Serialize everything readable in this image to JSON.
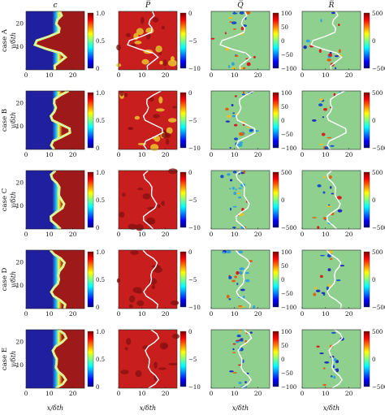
{
  "chart_data": {
    "type": "heatmap",
    "columns": [
      {
        "key": "c",
        "title": "c",
        "cbar_ticks_by_row": [
          [
            "1.0",
            "0.5",
            "0"
          ],
          [
            "1.0",
            "0.5",
            "0"
          ],
          [
            "1.0",
            "0.5",
            "0"
          ],
          [
            "1.0",
            "0.5",
            "0"
          ],
          [
            "1.0",
            "0.5",
            "0"
          ]
        ],
        "colormap": "jet",
        "range": [
          0,
          1
        ]
      },
      {
        "key": "P",
        "title": "P̅",
        "cbar_ticks_by_row": [
          [
            "0",
            "−5",
            "−10"
          ],
          [
            "0",
            "−5",
            "−10"
          ],
          [
            "0",
            "−5",
            "−10"
          ],
          [
            "0",
            "−5",
            "−10"
          ],
          [
            "0",
            "−5",
            "−10"
          ]
        ],
        "colormap": "jet",
        "range": [
          -10,
          0
        ]
      },
      {
        "key": "Q",
        "title": "Q̅",
        "cbar_ticks_by_row": [
          [
            "100",
            "50",
            "0",
            "−50",
            "−100"
          ],
          [
            "100",
            "50",
            "0",
            "−50",
            "−100"
          ],
          [
            "500",
            "0",
            "−500"
          ],
          [
            "100",
            "50",
            "0",
            "−50",
            "−100"
          ],
          [
            "100",
            "50",
            "0",
            "−50",
            "−100"
          ]
        ],
        "colormap": "jet",
        "range": [
          -100,
          100
        ]
      },
      {
        "key": "R",
        "title": "R̅",
        "cbar_ticks_by_row": [
          [
            "500",
            "0",
            "−500"
          ],
          [
            "500",
            "0",
            "−500"
          ],
          [
            "500",
            "0",
            "−500"
          ],
          [
            "500",
            "0",
            "−500"
          ],
          [
            "500",
            "0",
            "−500"
          ]
        ],
        "colormap": "jet",
        "range": [
          -500,
          500
        ]
      }
    ],
    "rows": [
      "case A",
      "case B",
      "case C",
      "case D",
      "case E"
    ],
    "xlabel": "x/δth",
    "ylabel": "y/δth",
    "xticks": [
      "0",
      "10",
      "20"
    ],
    "yticks": [
      "20",
      "10"
    ],
    "xlim": [
      0,
      25
    ],
    "ylim": [
      0,
      25
    ]
  },
  "colors": {
    "deep_blue": "#1f1fa0",
    "dark_red": "#9e1a1a",
    "red": "#d92a1a",
    "green": "#8fd08f",
    "front": "#ffffff"
  }
}
